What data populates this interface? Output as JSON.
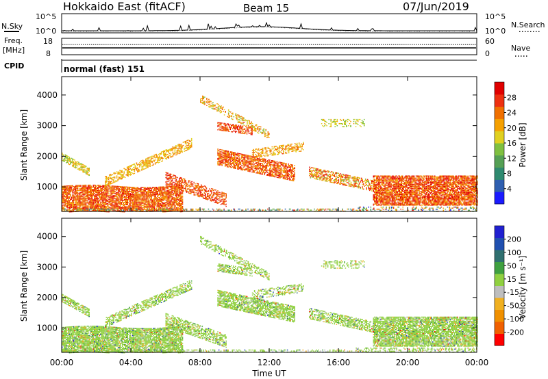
{
  "header": {
    "station": "Hokkaido East (fitACF)",
    "beam": "Beam 15",
    "date": "07/Jun/2019"
  },
  "noise_panel": {
    "left_label": "N.Sky",
    "right_label": "N.Search",
    "left_top_tick": "10^5",
    "left_bottom_tick": "10^0",
    "right_top_tick": "10^5",
    "right_bottom_tick": "10^0"
  },
  "freq_panel": {
    "label_line1": "Freq.",
    "label_line2": "[MHz]",
    "right_label": "Nave",
    "left_top_tick": "18",
    "left_bottom_tick": "8",
    "right_top_tick": "60",
    "right_bottom_tick": "0"
  },
  "cpid_panel": {
    "label": "CPID",
    "mode_text": "normal (fast) 151"
  },
  "chart_data": [
    {
      "type": "heatmap",
      "name": "power",
      "ylabel": "Slant Range [km]",
      "yticks": [
        "4000",
        "3000",
        "2000",
        "1000"
      ],
      "yrange_km": [
        200,
        4600
      ],
      "colorbar": {
        "label": "Power [dB]",
        "ticks": [
          "28",
          "24",
          "20",
          "16",
          "12",
          "8",
          "4"
        ],
        "range": [
          0,
          32
        ],
        "colors": [
          "#1a1aff",
          "#2f5fb0",
          "#2f8a70",
          "#55a055",
          "#7fc040",
          "#e0d020",
          "#f5a000",
          "#f07000",
          "#ee3010",
          "#e00000"
        ]
      }
    },
    {
      "type": "heatmap",
      "name": "velocity",
      "ylabel": "Slant Range [km]",
      "yticks": [
        "4000",
        "3000",
        "2000",
        "1000"
      ],
      "yrange_km": [
        200,
        4600
      ],
      "colorbar": {
        "label": "Velocity [m s⁻¹]",
        "ticks": [
          "200",
          "100",
          "50",
          "15",
          "-15",
          "-50",
          "-100",
          "-200"
        ],
        "range": [
          -250,
          250
        ],
        "colors": [
          "#ff0000",
          "#f06000",
          "#f09000",
          "#f0b020",
          "#bebebe",
          "#90d040",
          "#3fa040",
          "#307070",
          "#2050b0",
          "#2020d0"
        ]
      }
    }
  ],
  "time_axis": {
    "label": "Time UT",
    "ticks": [
      "00:00",
      "04:00",
      "08:00",
      "12:00",
      "16:00",
      "20:00",
      "00:00"
    ],
    "range_hours": [
      0,
      24
    ]
  }
}
